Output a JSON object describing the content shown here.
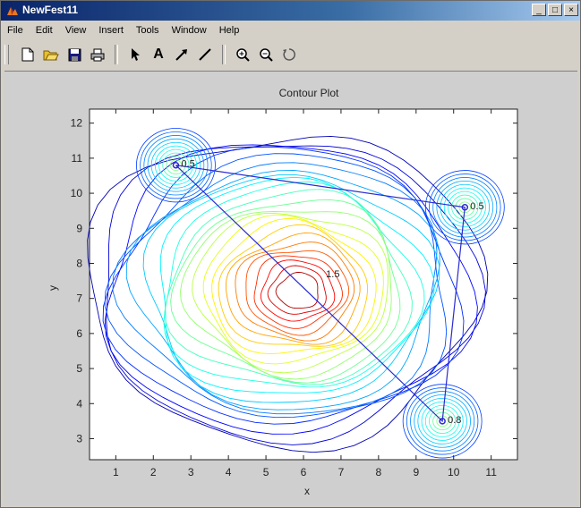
{
  "window": {
    "title": "NewFest11",
    "controls": [
      "_",
      "□",
      "×"
    ]
  },
  "menu": [
    "File",
    "Edit",
    "View",
    "Insert",
    "Tools",
    "Window",
    "Help"
  ],
  "toolbar": {
    "icons": [
      "new-file-icon",
      "open-folder-icon",
      "save-icon",
      "print-icon",
      "arrow-select-icon",
      "text-A-icon",
      "arrow-annotate-icon",
      "line-icon",
      "zoom-in-icon",
      "zoom-out-icon",
      "rotate-icon"
    ],
    "text_tool_label": "A"
  },
  "chart_data": {
    "type": "contour",
    "title": "Contour Plot",
    "xlabel": "x",
    "ylabel": "y",
    "xlim": [
      0.3,
      11.7
    ],
    "ylim": [
      2.4,
      12.4
    ],
    "xticks": [
      1,
      2,
      3,
      4,
      5,
      6,
      7,
      8,
      9,
      10,
      11
    ],
    "yticks": [
      3,
      4,
      5,
      6,
      7,
      8,
      9,
      10,
      11,
      12
    ],
    "points": [
      {
        "x": 2.6,
        "y": 10.8,
        "label": "0.5"
      },
      {
        "x": 10.3,
        "y": 9.6,
        "label": "0.5"
      },
      {
        "x": 9.7,
        "y": 3.5,
        "label": "0.8"
      }
    ],
    "center_label": {
      "x": 6.6,
      "y": 7.6,
      "label": "1.5"
    },
    "path": [
      [
        2.6,
        10.8
      ],
      [
        10.3,
        9.6
      ],
      [
        9.7,
        3.5
      ],
      [
        2.6,
        10.8
      ]
    ]
  }
}
